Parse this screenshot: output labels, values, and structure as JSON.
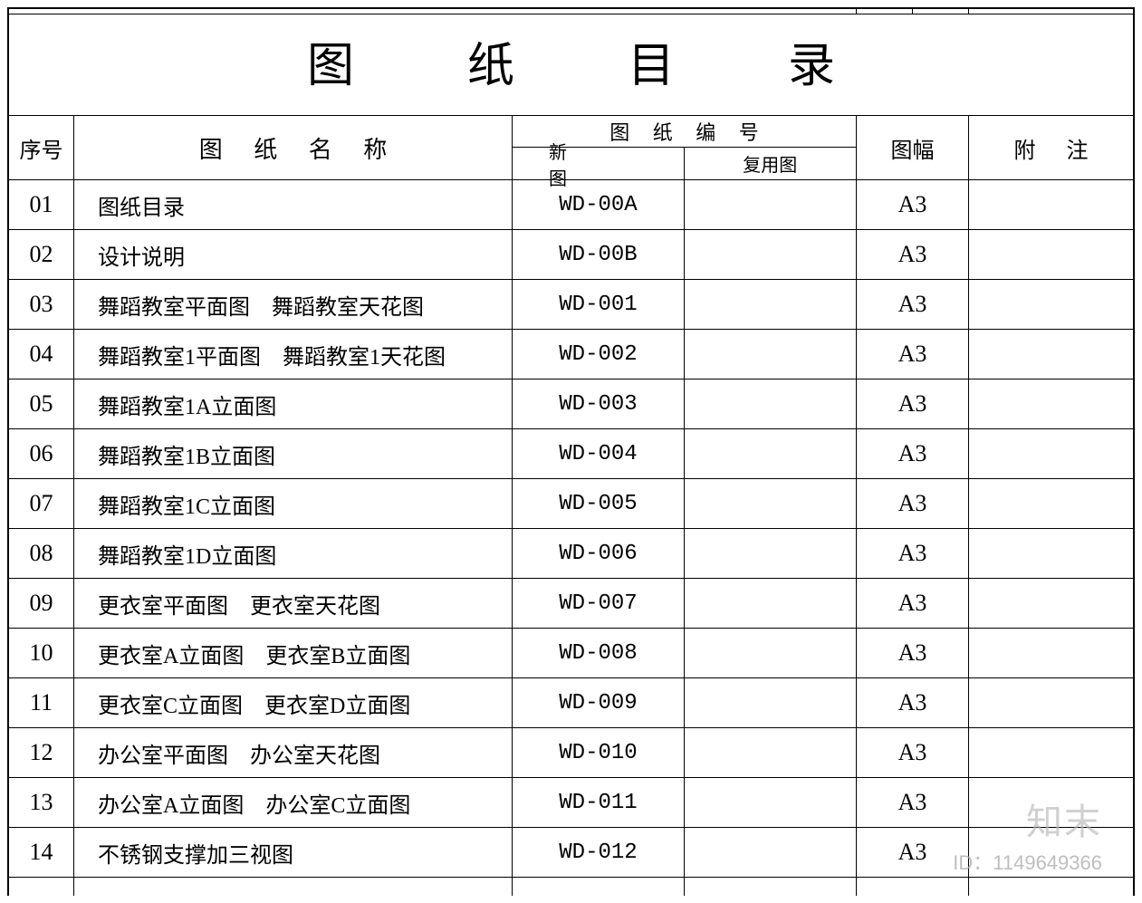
{
  "title": "图 纸 目 录",
  "headers": {
    "seq": "序号",
    "name": "图 纸 名 称",
    "code_group": "图 纸 编 号",
    "new_code": "新 图",
    "reuse_code": "复用图",
    "size": "图幅",
    "note": "附 注"
  },
  "colors": {
    "border": "#000000",
    "background": "#ffffff",
    "text": "#000000",
    "watermark": "#b7b7b7"
  },
  "fonts": {
    "title_size": 52,
    "header_size": 24,
    "cell_size": 24
  },
  "column_widths": {
    "seq": 72,
    "name": 484,
    "new_code": 190,
    "reuse_code": 190,
    "size": 124
  },
  "rows": [
    {
      "seq": "01",
      "name": "图纸目录",
      "new_code": "WD-00A",
      "reuse_code": "",
      "size": "A3",
      "note": ""
    },
    {
      "seq": "02",
      "name": "设计说明",
      "new_code": "WD-00B",
      "reuse_code": "",
      "size": "A3",
      "note": ""
    },
    {
      "seq": "03",
      "name": "舞蹈教室平面图　舞蹈教室天花图",
      "new_code": "WD-001",
      "reuse_code": "",
      "size": "A3",
      "note": ""
    },
    {
      "seq": "04",
      "name": "舞蹈教室1平面图　舞蹈教室1天花图",
      "new_code": "WD-002",
      "reuse_code": "",
      "size": "A3",
      "note": ""
    },
    {
      "seq": "05",
      "name": "舞蹈教室1A立面图",
      "new_code": "WD-003",
      "reuse_code": "",
      "size": "A3",
      "note": ""
    },
    {
      "seq": "06",
      "name": "舞蹈教室1B立面图",
      "new_code": "WD-004",
      "reuse_code": "",
      "size": "A3",
      "note": ""
    },
    {
      "seq": "07",
      "name": "舞蹈教室1C立面图",
      "new_code": "WD-005",
      "reuse_code": "",
      "size": "A3",
      "note": ""
    },
    {
      "seq": "08",
      "name": "舞蹈教室1D立面图",
      "new_code": "WD-006",
      "reuse_code": "",
      "size": "A3",
      "note": ""
    },
    {
      "seq": "09",
      "name": "更衣室平面图　更衣室天花图",
      "new_code": "WD-007",
      "reuse_code": "",
      "size": "A3",
      "note": ""
    },
    {
      "seq": "10",
      "name": "更衣室A立面图　更衣室B立面图",
      "new_code": "WD-008",
      "reuse_code": "",
      "size": "A3",
      "note": ""
    },
    {
      "seq": "11",
      "name": "更衣室C立面图　更衣室D立面图",
      "new_code": "WD-009",
      "reuse_code": "",
      "size": "A3",
      "note": ""
    },
    {
      "seq": "12",
      "name": "办公室平面图　办公室天花图",
      "new_code": "WD-010",
      "reuse_code": "",
      "size": "A3",
      "note": ""
    },
    {
      "seq": "13",
      "name": "办公室A立面图　办公室C立面图",
      "new_code": "WD-011",
      "reuse_code": "",
      "size": "A3",
      "note": ""
    },
    {
      "seq": "14",
      "name": "不锈钢支撑加三视图",
      "new_code": "WD-012",
      "reuse_code": "",
      "size": "A3",
      "note": ""
    }
  ],
  "watermark": {
    "logo": "知末",
    "id": "ID：1149649366"
  }
}
